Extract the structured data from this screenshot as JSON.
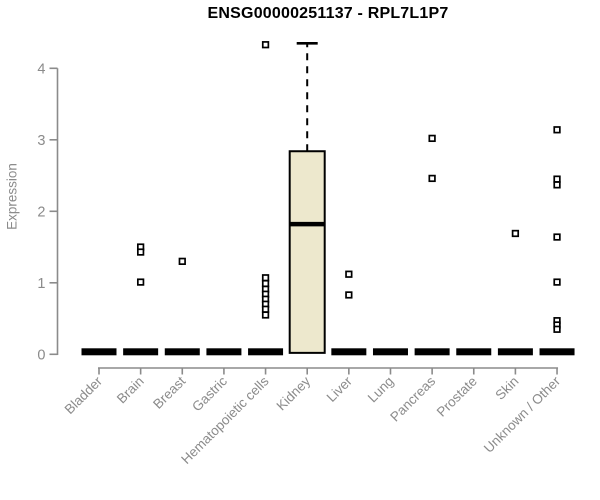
{
  "title": "ENSG00000251137 - RPL7L1P7",
  "chart_data": {
    "type": "boxplot",
    "title": "ENSG00000251137 - RPL7L1P7",
    "ylabel": "Expression",
    "xlabel": "",
    "ylim": [
      0,
      4.4
    ],
    "yticks": [
      0,
      1,
      2,
      3,
      4
    ],
    "grid": false,
    "legend": false,
    "colors": {
      "box_fill": "#EDE8CD",
      "box_stroke": "#000000",
      "median": "#000000",
      "outlier_stroke": "#000000",
      "outlier_fill": "#FFFFFF",
      "axis": "#8B8B8B",
      "title": "#000000",
      "background": "#FFFFFF"
    },
    "categories": [
      "Bladder",
      "Brain",
      "Breast",
      "Gastric",
      "Hematopoietic cells",
      "Kidney",
      "Liver",
      "Lung",
      "Pancreas",
      "Prostate",
      "Skin",
      "Unknown / Other"
    ],
    "series": [
      {
        "name": "Bladder",
        "q1": 0,
        "median": 0,
        "q3": 0,
        "whisker_low": 0,
        "whisker_high": 0,
        "outliers": []
      },
      {
        "name": "Brain",
        "q1": 0,
        "median": 0,
        "q3": 0,
        "whisker_low": 0,
        "whisker_high": 0,
        "outliers": [
          1.5,
          1.43,
          1.01
        ]
      },
      {
        "name": "Breast",
        "q1": 0,
        "median": 0,
        "q3": 0,
        "whisker_low": 0,
        "whisker_high": 0,
        "outliers": [
          1.3
        ]
      },
      {
        "name": "Gastric",
        "q1": 0,
        "median": 0,
        "q3": 0,
        "whisker_low": 0,
        "whisker_high": 0,
        "outliers": []
      },
      {
        "name": "Hematopoietic cells",
        "q1": 0,
        "median": 0,
        "q3": 0,
        "whisker_low": 0,
        "whisker_high": 0,
        "outliers": [
          4.33,
          1.07,
          0.99,
          0.91,
          0.84,
          0.77,
          0.7,
          0.63,
          0.55
        ]
      },
      {
        "name": "Kidney",
        "q1": 0.02,
        "median": 1.82,
        "q3": 2.84,
        "whisker_low": 0.02,
        "whisker_high": 4.35,
        "outliers": []
      },
      {
        "name": "Liver",
        "q1": 0,
        "median": 0,
        "q3": 0,
        "whisker_low": 0,
        "whisker_high": 0,
        "outliers": [
          1.12,
          0.83
        ]
      },
      {
        "name": "Lung",
        "q1": 0,
        "median": 0,
        "q3": 0,
        "whisker_low": 0,
        "whisker_high": 0,
        "outliers": []
      },
      {
        "name": "Pancreas",
        "q1": 0,
        "median": 0,
        "q3": 0,
        "whisker_low": 0,
        "whisker_high": 0,
        "outliers": [
          3.02,
          2.46
        ]
      },
      {
        "name": "Prostate",
        "q1": 0,
        "median": 0,
        "q3": 0,
        "whisker_low": 0,
        "whisker_high": 0,
        "outliers": []
      },
      {
        "name": "Skin",
        "q1": 0,
        "median": 0,
        "q3": 0,
        "whisker_low": 0,
        "whisker_high": 0,
        "outliers": [
          1.69
        ]
      },
      {
        "name": "Unknown / Other",
        "q1": 0,
        "median": 0,
        "q3": 0,
        "whisker_low": 0,
        "whisker_high": 0,
        "outliers": [
          3.14,
          2.45,
          2.37,
          1.64,
          1.01,
          0.47,
          0.41,
          0.35
        ]
      }
    ]
  }
}
